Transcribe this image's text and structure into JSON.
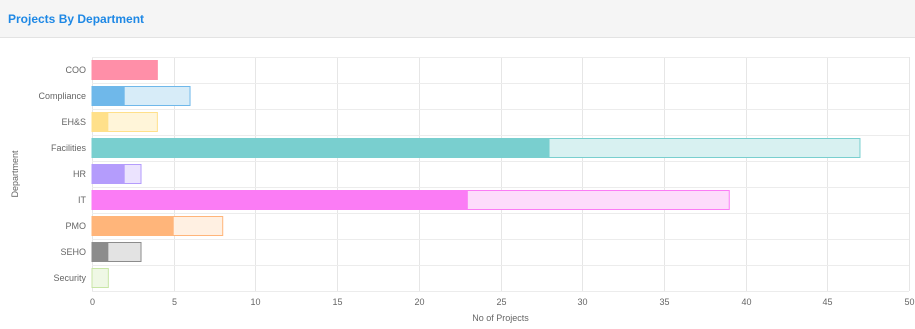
{
  "panel": {
    "title": "Projects By Department"
  },
  "chart_data": {
    "type": "bar",
    "orientation": "horizontal",
    "stacked": false,
    "overlapping": true,
    "categories": [
      "COO",
      "Compliance",
      "EH&S",
      "Facilities",
      "HR",
      "IT",
      "PMO",
      "SEHO",
      "Security"
    ],
    "series": [
      {
        "values": [
          4,
          6,
          4,
          47,
          3,
          39,
          8,
          3,
          1
        ]
      },
      {
        "values": [
          4,
          2,
          1,
          28,
          2,
          23,
          5,
          1,
          0
        ]
      }
    ],
    "colors": [
      {
        "solid": "#ff8fa8",
        "light": "#ffd6df"
      },
      {
        "solid": "#6fb8ea",
        "light": "#d7ecf8"
      },
      {
        "solid": "#ffe08a",
        "light": "#fff5d9"
      },
      {
        "solid": "#79cfcf",
        "light": "#d8f1f1"
      },
      {
        "solid": "#b49cfc",
        "light": "#ebe3fe"
      },
      {
        "solid": "#fb7cf5",
        "light": "#fddcfb"
      },
      {
        "solid": "#ffb57a",
        "light": "#fff0e2"
      },
      {
        "solid": "#8c8c8c",
        "light": "#e3e3e3"
      },
      {
        "solid": "#c8e6a6",
        "light": "#eff8e5"
      }
    ],
    "xlim": [
      0,
      50
    ],
    "xticks": [
      "0",
      "5",
      "10",
      "15",
      "20",
      "25",
      "30",
      "35",
      "40",
      "45",
      "50"
    ],
    "xlabel": "No of Projects",
    "ylabel": "Department",
    "grid": true,
    "legend": false
  }
}
